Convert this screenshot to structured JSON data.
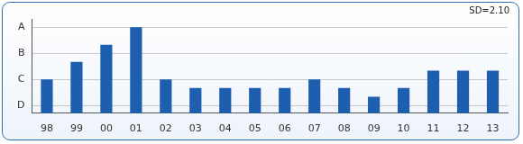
{
  "chart_data": {
    "type": "bar",
    "annotation": "SD=2.10",
    "categories": [
      "98",
      "99",
      "00",
      "01",
      "02",
      "03",
      "04",
      "05",
      "06",
      "07",
      "08",
      "09",
      "10",
      "11",
      "12",
      "13"
    ],
    "values": [
      2,
      2.67,
      3.33,
      4,
      2,
      1.67,
      1.67,
      1.67,
      1.67,
      2,
      1.67,
      1.33,
      1.67,
      2.33,
      2.33,
      2.33
    ],
    "color": "#1d5fae",
    "ylim": [
      0.7,
      4.3
    ],
    "yticks": [
      {
        "value": 1,
        "label": "D"
      },
      {
        "value": 2,
        "label": "C"
      },
      {
        "value": 3,
        "label": "B"
      },
      {
        "value": 4,
        "label": "A"
      }
    ],
    "grid": true
  }
}
